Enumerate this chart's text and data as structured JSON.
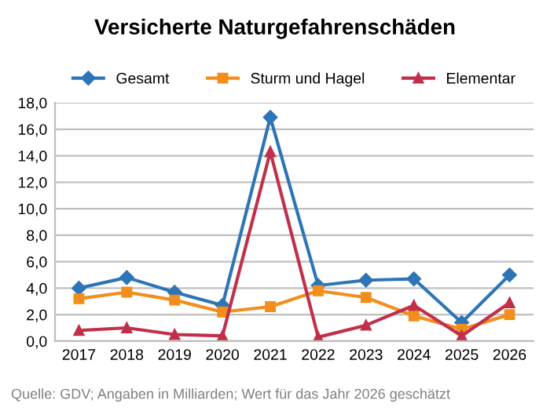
{
  "chart_data": {
    "type": "line",
    "title": "Versicherte Naturgefahrenschäden",
    "categories": [
      "2017",
      "2018",
      "2019",
      "2020",
      "2021",
      "2022",
      "2023",
      "2024",
      "2025",
      "2026"
    ],
    "series": [
      {
        "name": "Gesamt",
        "color": "#2e75b6",
        "marker": "diamond",
        "values": [
          4.0,
          4.8,
          3.7,
          2.7,
          16.9,
          4.2,
          4.6,
          4.7,
          1.4,
          5.0
        ]
      },
      {
        "name": "Sturm und Hagel",
        "color": "#f28e1c",
        "marker": "square",
        "values": [
          3.2,
          3.7,
          3.1,
          2.2,
          2.6,
          3.8,
          3.3,
          1.9,
          0.9,
          2.0
        ]
      },
      {
        "name": "Elementar",
        "color": "#c0304a",
        "marker": "triangle",
        "values": [
          0.8,
          1.0,
          0.5,
          0.4,
          14.3,
          0.3,
          1.2,
          2.7,
          0.4,
          2.9
        ]
      }
    ],
    "ylim": [
      0,
      18
    ],
    "yticks": [
      {
        "value": 0,
        "label": "0,0"
      },
      {
        "value": 2,
        "label": "2,0"
      },
      {
        "value": 4,
        "label": "4,0"
      },
      {
        "value": 6,
        "label": "6,0"
      },
      {
        "value": 8,
        "label": "8,0"
      },
      {
        "value": 10,
        "label": "10,0"
      },
      {
        "value": 12,
        "label": "12,0"
      },
      {
        "value": 14,
        "label": "14,0"
      },
      {
        "value": 16,
        "label": "16,0"
      },
      {
        "value": 18,
        "label": "18,0"
      }
    ],
    "grid": "y",
    "legend": "top",
    "line_style": "solid",
    "annotations": [
      "Quelle: GDV; Angaben in Milliarden; Wert für das Jahr 2026 geschätzt"
    ]
  }
}
